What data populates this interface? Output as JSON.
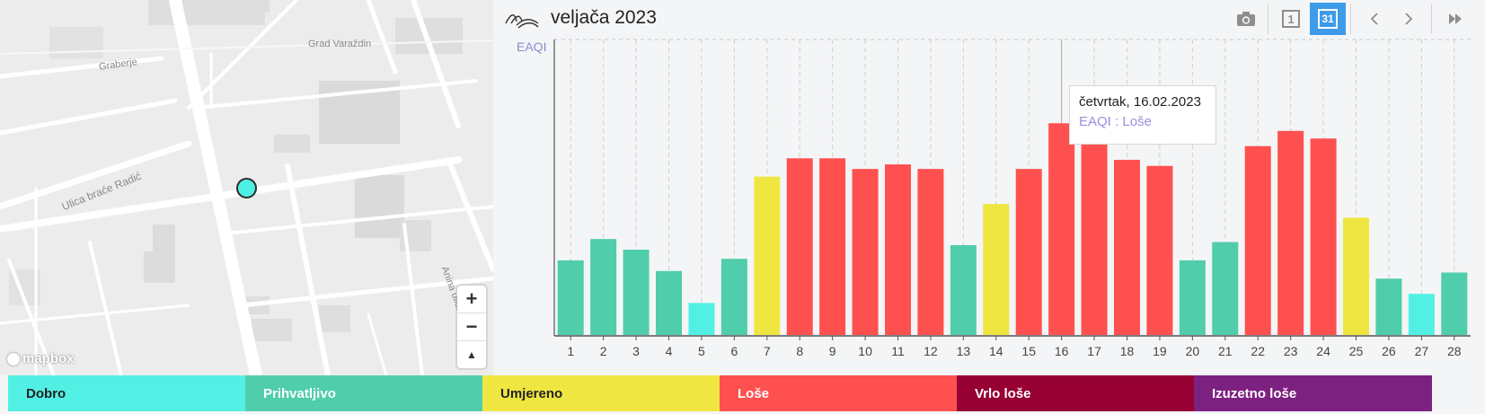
{
  "map": {
    "labels": {
      "city": "Grad Varaždin",
      "graberje": "Graberje",
      "street1": "Ulica braće Radić",
      "street2": "Anina ulica"
    },
    "zoom_in": "+",
    "zoom_out": "−",
    "compass": "▲",
    "attribution": "mapbox",
    "marker_color": "#4ff0e4"
  },
  "header": {
    "title": "veljača 2023",
    "icons": [
      "wave-logo-icon",
      "camera-icon",
      "day-view-icon",
      "month-view-icon",
      "prev-icon",
      "next-icon",
      "fast-forward-icon"
    ],
    "day_label": "1",
    "month_label": "31"
  },
  "chart_data": {
    "type": "bar",
    "ylabel": "EAQI",
    "categories": [
      "1",
      "2",
      "3",
      "4",
      "5",
      "6",
      "7",
      "8",
      "9",
      "10",
      "11",
      "12",
      "13",
      "14",
      "15",
      "16",
      "17",
      "18",
      "19",
      "20",
      "21",
      "22",
      "23",
      "24",
      "25",
      "26",
      "27",
      "28"
    ],
    "values": [
      2.45,
      3.15,
      2.8,
      2.1,
      1.05,
      2.5,
      5.2,
      5.8,
      5.8,
      5.45,
      5.6,
      5.45,
      2.95,
      4.3,
      5.45,
      6.95,
      6.4,
      5.75,
      5.55,
      2.45,
      3.05,
      6.2,
      6.7,
      6.45,
      3.85,
      1.85,
      1.35,
      2.05
    ],
    "levels": [
      "Prihvatljivo",
      "Prihvatljivo",
      "Prihvatljivo",
      "Prihvatljivo",
      "Dobro",
      "Prihvatljivo",
      "Umjereno",
      "Loše",
      "Loše",
      "Loše",
      "Loše",
      "Loše",
      "Prihvatljivo",
      "Umjereno",
      "Loše",
      "Loše",
      "Loše",
      "Loše",
      "Loše",
      "Prihvatljivo",
      "Prihvatljivo",
      "Loše",
      "Loše",
      "Loše",
      "Umjereno",
      "Prihvatljivo",
      "Dobro",
      "Prihvatljivo"
    ],
    "ylim": [
      0,
      9.7
    ],
    "grid": true,
    "highlight_index": 15,
    "tooltip": {
      "date": "četvrtak, 16.02.2023",
      "value": "EAQI : Loše"
    }
  },
  "legend": [
    {
      "label": "Dobro",
      "color": "#52f0e4",
      "text_color": "#222222"
    },
    {
      "label": "Prihvatljivo",
      "color": "#50cdab",
      "text_color": "#ffffff"
    },
    {
      "label": "Umjereno",
      "color": "#f0e641",
      "text_color": "#222222"
    },
    {
      "label": "Loše",
      "color": "#ff5050",
      "text_color": "#ffffff"
    },
    {
      "label": "Vrlo loše",
      "color": "#960032",
      "text_color": "#ffffff"
    },
    {
      "label": "Izuzetno loše",
      "color": "#7d2181",
      "text_color": "#ffffff"
    }
  ]
}
